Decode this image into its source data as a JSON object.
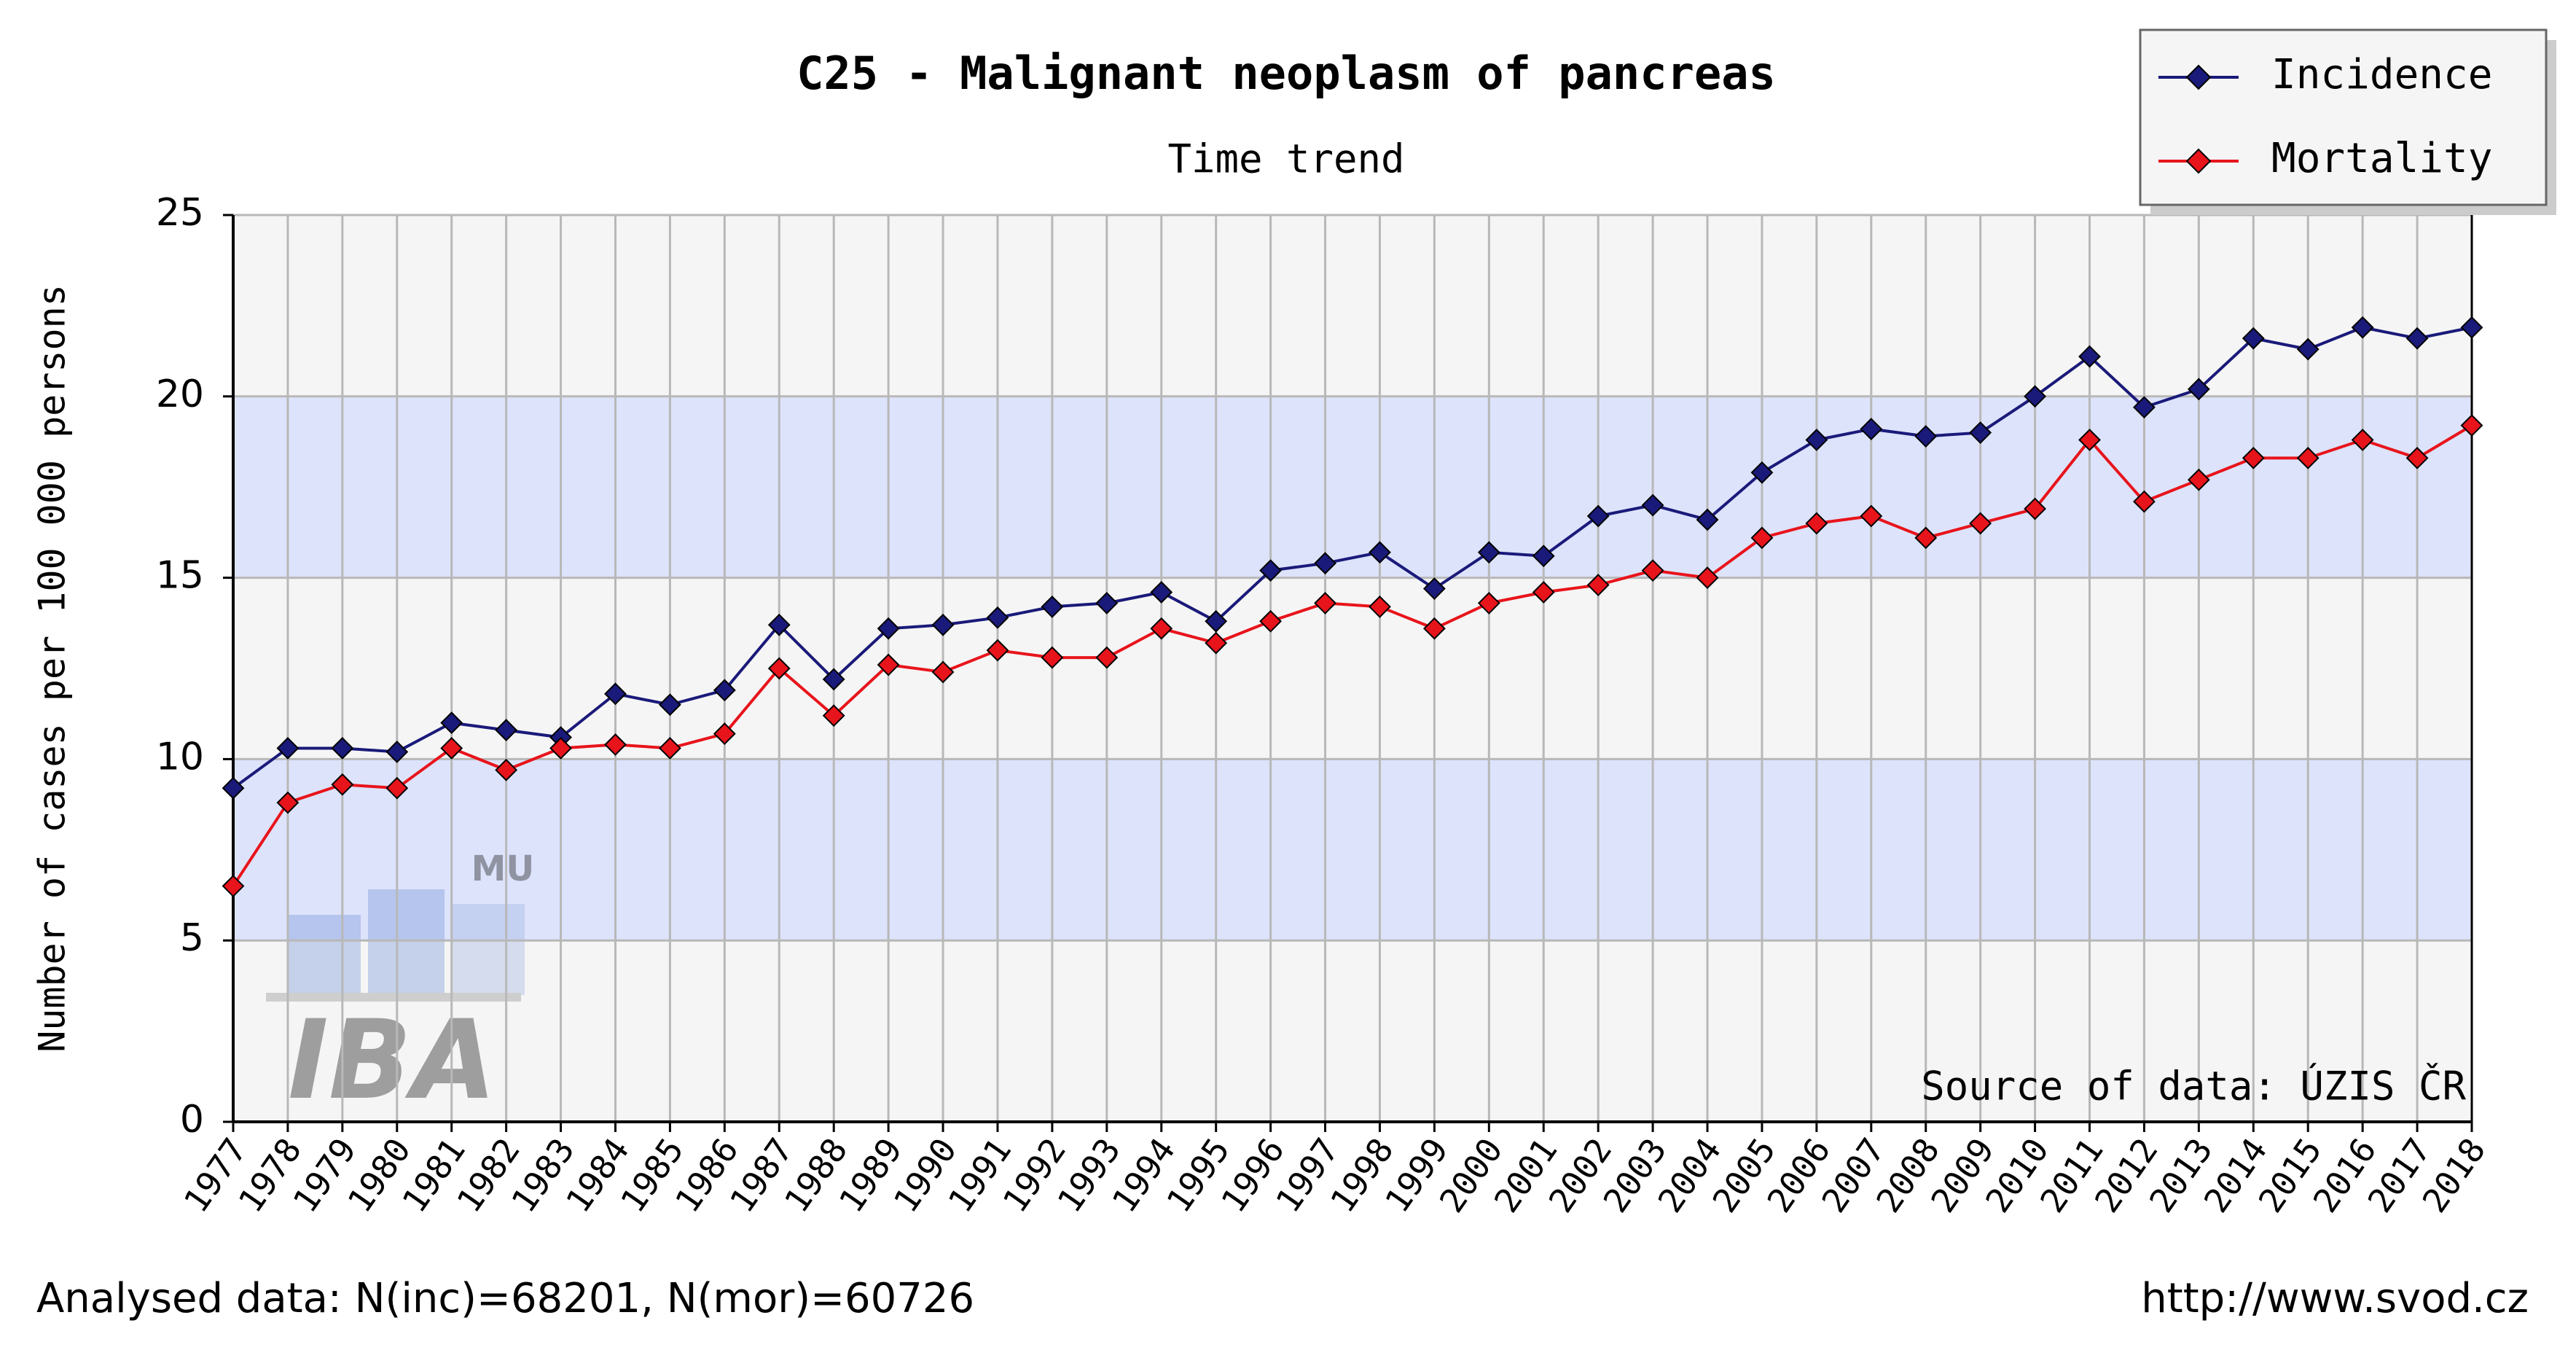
{
  "chart_data": {
    "type": "line",
    "title": "C25 - Malignant neoplasm of pancreas",
    "subtitle": "Time trend",
    "y_label": "Number of cases per 100 000 persons",
    "source_note": "Source of data: ÚZIS ČR",
    "footer_left": "Analysed data: N(inc)=68201, N(mor)=60726",
    "footer_right": "http://www.svod.cz",
    "watermark": [
      "MU",
      "IBA"
    ],
    "categories": [
      "1977",
      "1978",
      "1979",
      "1980",
      "1981",
      "1982",
      "1983",
      "1984",
      "1985",
      "1986",
      "1987",
      "1988",
      "1989",
      "1990",
      "1991",
      "1992",
      "1993",
      "1994",
      "1995",
      "1996",
      "1997",
      "1998",
      "1999",
      "2000",
      "2001",
      "2002",
      "2003",
      "2004",
      "2005",
      "2006",
      "2007",
      "2008",
      "2009",
      "2010",
      "2011",
      "2012",
      "2013",
      "2014",
      "2015",
      "2016",
      "2017",
      "2018"
    ],
    "series": [
      {
        "name": "Incidence",
        "color": "#1a1a7a",
        "values": [
          9.2,
          10.3,
          10.3,
          10.2,
          11.0,
          10.8,
          10.6,
          11.8,
          11.5,
          11.9,
          13.7,
          12.2,
          13.6,
          13.7,
          13.9,
          14.2,
          14.3,
          14.6,
          13.8,
          15.2,
          15.4,
          15.7,
          14.7,
          15.7,
          15.6,
          16.7,
          17.0,
          16.6,
          17.9,
          18.8,
          19.1,
          18.9,
          19.0,
          20.0,
          21.1,
          19.7,
          20.2,
          21.6,
          21.3,
          21.9,
          21.6,
          21.9
        ]
      },
      {
        "name": "Mortality",
        "color": "#e8141b",
        "values": [
          6.5,
          8.8,
          9.3,
          9.2,
          10.3,
          9.7,
          10.3,
          10.4,
          10.3,
          10.7,
          12.5,
          11.2,
          12.6,
          12.4,
          13.0,
          12.8,
          12.8,
          13.6,
          13.2,
          13.8,
          14.3,
          14.2,
          13.6,
          14.3,
          14.6,
          14.8,
          15.2,
          15.0,
          16.1,
          16.5,
          16.7,
          16.1,
          16.5,
          16.9,
          18.8,
          17.1,
          17.7,
          18.3,
          18.3,
          18.8,
          18.3,
          19.2
        ]
      }
    ],
    "ylim": [
      0,
      25
    ],
    "yticks": [
      0,
      5,
      10,
      15,
      20,
      25
    ],
    "grid": true,
    "legend": "upper right"
  }
}
